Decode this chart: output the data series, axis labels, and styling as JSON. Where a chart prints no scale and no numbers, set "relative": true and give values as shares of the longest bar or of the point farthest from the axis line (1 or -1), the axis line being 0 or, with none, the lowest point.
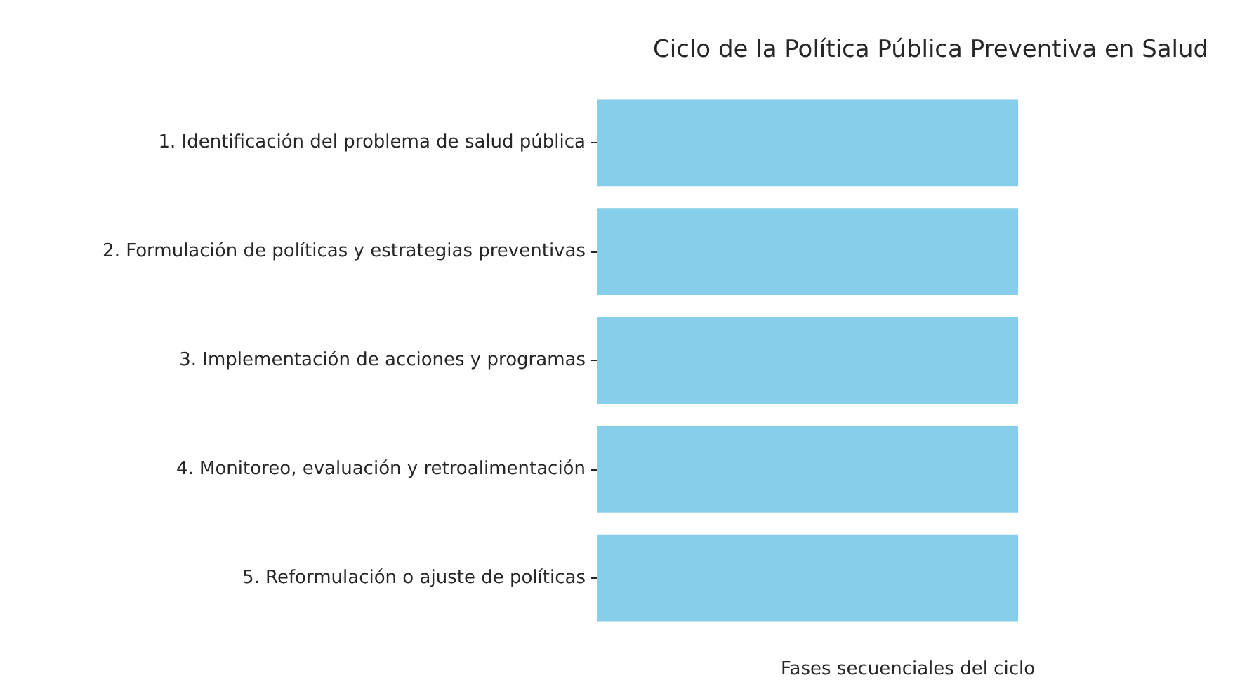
{
  "chart_data": {
    "type": "bar",
    "orientation": "horizontal",
    "relative": true,
    "title": "Ciclo de la Política Pública Preventiva en Salud",
    "xlabel": "Fases secuenciales del ciclo",
    "categories": [
      "1. Identificación del problema de salud pública",
      "2. Formulación de políticas y estrategias preventivas",
      "3. Implementación de acciones y programas",
      "4. Monitoreo, evaluación y retroalimentación",
      "5. Reformulación o ajuste de políticas"
    ],
    "values": [
      1,
      1,
      1,
      1,
      1
    ],
    "color": "#87ceeb"
  }
}
